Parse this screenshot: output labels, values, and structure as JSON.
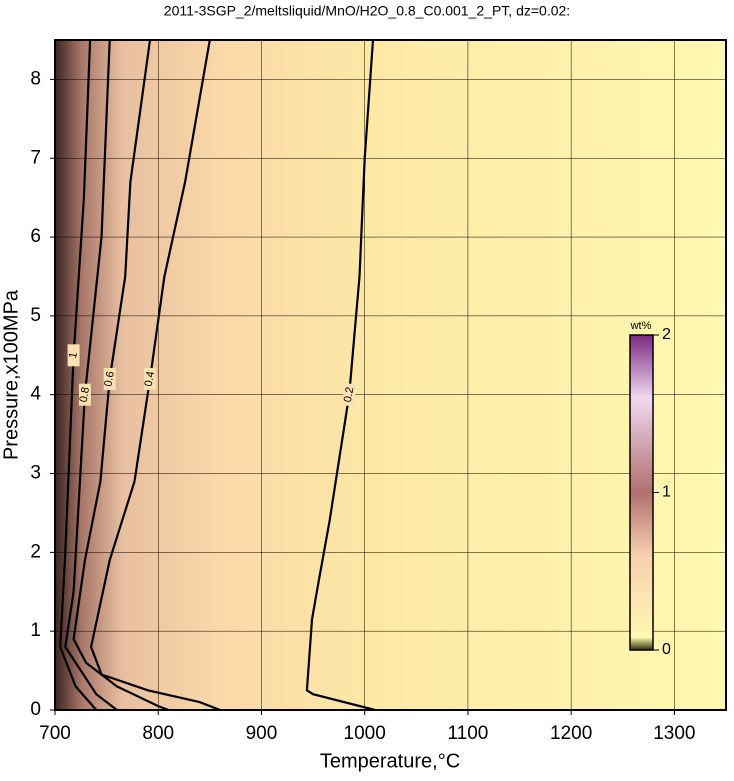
{
  "chart_data": {
    "type": "contour",
    "title": "2011-3SGP_2/meltsliquid/MnO/H2O_0.8_C0.001_2_PT, dz=0.02:",
    "x_label": "Temperature,°C",
    "y_label": "Pressure,x100MPa",
    "xlim": [
      700,
      1350
    ],
    "ylim": [
      0,
      8.5
    ],
    "xticks": [
      700,
      800,
      900,
      1000,
      1100,
      1200,
      1300
    ],
    "yticks": [
      0,
      1,
      2,
      3,
      4,
      5,
      6,
      7,
      8
    ],
    "grid": true,
    "contour_color": "#000000",
    "contours": [
      {
        "level": 0.2,
        "x": [
          1008,
          1000,
          995,
          985,
          966,
          955,
          949,
          944,
          950,
          1010
        ],
        "y": [
          8.5,
          7,
          5.5,
          4,
          2.4,
          1.6,
          1.15,
          0.25,
          0.2,
          0
        ]
      },
      {
        "level": 0.4,
        "x": [
          850,
          826,
          806,
          792,
          777,
          753,
          735,
          745,
          790,
          840,
          860
        ],
        "y": [
          8.5,
          6.7,
          5.5,
          4.2,
          2.9,
          1.9,
          0.8,
          0.45,
          0.25,
          0.1,
          0
        ]
      },
      {
        "level": 0.6,
        "x": [
          792,
          773,
          768,
          753,
          744,
          729,
          718,
          730,
          760,
          800,
          810
        ],
        "y": [
          8.5,
          6.7,
          5.5,
          4.2,
          2.9,
          1.9,
          0.9,
          0.6,
          0.3,
          0.05,
          0
        ]
      },
      {
        "level": 0.8,
        "x": [
          753,
          745,
          729,
          718,
          710,
          740,
          760
        ],
        "y": [
          8.5,
          6,
          4,
          1.5,
          0.8,
          0.2,
          0
        ]
      },
      {
        "level": 1,
        "x": [
          734,
          728,
          718,
          710,
          705,
          720,
          740
        ],
        "y": [
          8.5,
          6.5,
          4.5,
          2,
          0.8,
          0.3,
          0
        ]
      }
    ],
    "colorbar": {
      "label": "wt%",
      "lim": [
        0,
        2
      ],
      "ticks": [
        0,
        1,
        2
      ]
    }
  }
}
